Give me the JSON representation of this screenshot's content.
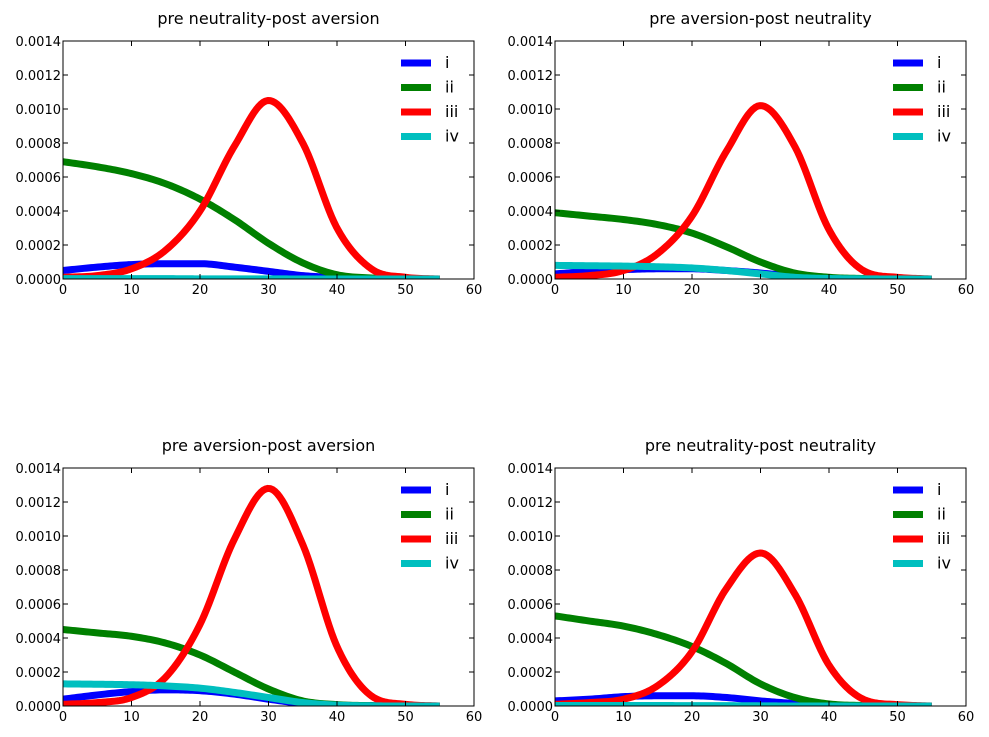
{
  "chart_data": [
    {
      "type": "line",
      "title": "pre neutrality-post aversion",
      "xlim": [
        0,
        60
      ],
      "ylim": [
        0,
        0.0014
      ],
      "xticks": [
        "0",
        "10",
        "20",
        "30",
        "40",
        "50",
        "60"
      ],
      "yticks": [
        "0.0000",
        "0.0002",
        "0.0004",
        "0.0006",
        "0.0008",
        "0.0010",
        "0.0012",
        "0.0014"
      ],
      "legend_position": "top-right",
      "x": [
        0,
        5,
        10,
        15,
        20,
        25,
        30,
        35,
        40,
        45,
        50,
        55
      ],
      "series": [
        {
          "name": "i",
          "color": "#0000ff",
          "values": [
            5e-05,
            7e-05,
            8.5e-05,
            9e-05,
            9e-05,
            7e-05,
            4.5e-05,
            2e-05,
            8e-06,
            3e-06,
            1e-06,
            0
          ]
        },
        {
          "name": "ii",
          "color": "#008000",
          "values": [
            0.00069,
            0.00066,
            0.00062,
            0.00056,
            0.00047,
            0.00035,
            0.00021,
            9.5e-05,
            2.5e-05,
            6e-06,
            1e-06,
            0
          ]
        },
        {
          "name": "iii",
          "color": "#ff0000",
          "values": [
            1e-05,
            2e-05,
            6e-05,
            0.00017,
            0.0004,
            0.00078,
            0.00105,
            0.0008,
            0.0003,
            6e-05,
            1e-05,
            0
          ]
        },
        {
          "name": "iv",
          "color": "#00bfbf",
          "values": [
            2e-06,
            2e-06,
            2e-06,
            2e-06,
            1e-06,
            1e-06,
            1e-06,
            0,
            0,
            0,
            0,
            0
          ]
        }
      ]
    },
    {
      "type": "line",
      "title": "pre aversion-post neutrality",
      "xlim": [
        0,
        60
      ],
      "ylim": [
        0,
        0.0014
      ],
      "xticks": [
        "0",
        "10",
        "20",
        "30",
        "40",
        "50",
        "60"
      ],
      "yticks": [
        "0.0000",
        "0.0002",
        "0.0004",
        "0.0006",
        "0.0008",
        "0.0010",
        "0.0012",
        "0.0014"
      ],
      "legend_position": "top-right",
      "x": [
        0,
        5,
        10,
        15,
        20,
        25,
        30,
        35,
        40,
        45,
        50,
        55
      ],
      "series": [
        {
          "name": "i",
          "color": "#0000ff",
          "values": [
            3e-05,
            4.5e-05,
            5.5e-05,
            6e-05,
            6e-05,
            5e-05,
            3.5e-05,
            1.5e-05,
            5e-06,
            2e-06,
            0,
            0
          ]
        },
        {
          "name": "ii",
          "color": "#008000",
          "values": [
            0.00039,
            0.00037,
            0.00035,
            0.00032,
            0.00027,
            0.00019,
            0.0001,
            3.5e-05,
            1e-05,
            3e-06,
            1e-06,
            0
          ]
        },
        {
          "name": "iii",
          "color": "#ff0000",
          "values": [
            1e-05,
            2e-05,
            5e-05,
            0.00015,
            0.00037,
            0.00075,
            0.00102,
            0.00078,
            0.00029,
            5e-05,
            1e-05,
            0
          ]
        },
        {
          "name": "iv",
          "color": "#00bfbf",
          "values": [
            8e-05,
            7.8e-05,
            7.6e-05,
            7.2e-05,
            6.5e-05,
            5e-05,
            3e-05,
            1e-05,
            3e-06,
            1e-06,
            0,
            0
          ]
        }
      ]
    },
    {
      "type": "line",
      "title": "pre aversion-post aversion",
      "xlim": [
        0,
        60
      ],
      "ylim": [
        0,
        0.0014
      ],
      "xticks": [
        "0",
        "10",
        "20",
        "30",
        "40",
        "50",
        "60"
      ],
      "yticks": [
        "0.0000",
        "0.0002",
        "0.0004",
        "0.0006",
        "0.0008",
        "0.0010",
        "0.0012",
        "0.0014"
      ],
      "legend_position": "top-right",
      "x": [
        0,
        5,
        10,
        15,
        20,
        25,
        30,
        35,
        40,
        45,
        50,
        55
      ],
      "series": [
        {
          "name": "i",
          "color": "#0000ff",
          "values": [
            4e-05,
            6.5e-05,
            8.5e-05,
            9.5e-05,
            9e-05,
            7e-05,
            4e-05,
            1.5e-05,
            5e-06,
            2e-06,
            0,
            0
          ]
        },
        {
          "name": "ii",
          "color": "#008000",
          "values": [
            0.00045,
            0.00043,
            0.00041,
            0.00037,
            0.0003,
            0.0002,
            0.0001,
            3e-05,
            8e-06,
            2e-06,
            0,
            0
          ]
        },
        {
          "name": "iii",
          "color": "#ff0000",
          "values": [
            1e-05,
            2e-05,
            5e-05,
            0.00017,
            0.00048,
            0.00098,
            0.00128,
            0.00095,
            0.00035,
            6e-05,
            1e-05,
            0
          ]
        },
        {
          "name": "iv",
          "color": "#00bfbf",
          "values": [
            0.00013,
            0.000128,
            0.000125,
            0.000118,
            0.000105,
            8e-05,
            5e-05,
            2e-05,
            5e-06,
            1e-06,
            0,
            0
          ]
        }
      ]
    },
    {
      "type": "line",
      "title": "pre neutrality-post neutrality",
      "xlim": [
        0,
        60
      ],
      "ylim": [
        0,
        0.0014
      ],
      "xticks": [
        "0",
        "10",
        "20",
        "30",
        "40",
        "50",
        "60"
      ],
      "yticks": [
        "0.0000",
        "0.0002",
        "0.0004",
        "0.0006",
        "0.0008",
        "0.0010",
        "0.0012",
        "0.0014"
      ],
      "legend_position": "top-right",
      "x": [
        0,
        5,
        10,
        15,
        20,
        25,
        30,
        35,
        40,
        45,
        50,
        55
      ],
      "series": [
        {
          "name": "i",
          "color": "#0000ff",
          "values": [
            3e-05,
            4e-05,
            5.5e-05,
            6e-05,
            6e-05,
            5e-05,
            3e-05,
            1.5e-05,
            5e-06,
            1e-06,
            0,
            0
          ]
        },
        {
          "name": "ii",
          "color": "#008000",
          "values": [
            0.00053,
            0.0005,
            0.00047,
            0.00042,
            0.00035,
            0.00025,
            0.00013,
            5e-05,
            1.2e-05,
            3e-06,
            1e-06,
            0
          ]
        },
        {
          "name": "iii",
          "color": "#ff0000",
          "values": [
            1e-05,
            2e-05,
            4e-05,
            0.00012,
            0.00032,
            0.00069,
            0.0009,
            0.00066,
            0.00024,
            4e-05,
            8e-06,
            0
          ]
        },
        {
          "name": "iv",
          "color": "#00bfbf",
          "values": [
            3e-06,
            3e-06,
            3e-06,
            3e-06,
            2e-06,
            2e-06,
            1e-06,
            0,
            0,
            0,
            0,
            0
          ]
        }
      ]
    }
  ]
}
